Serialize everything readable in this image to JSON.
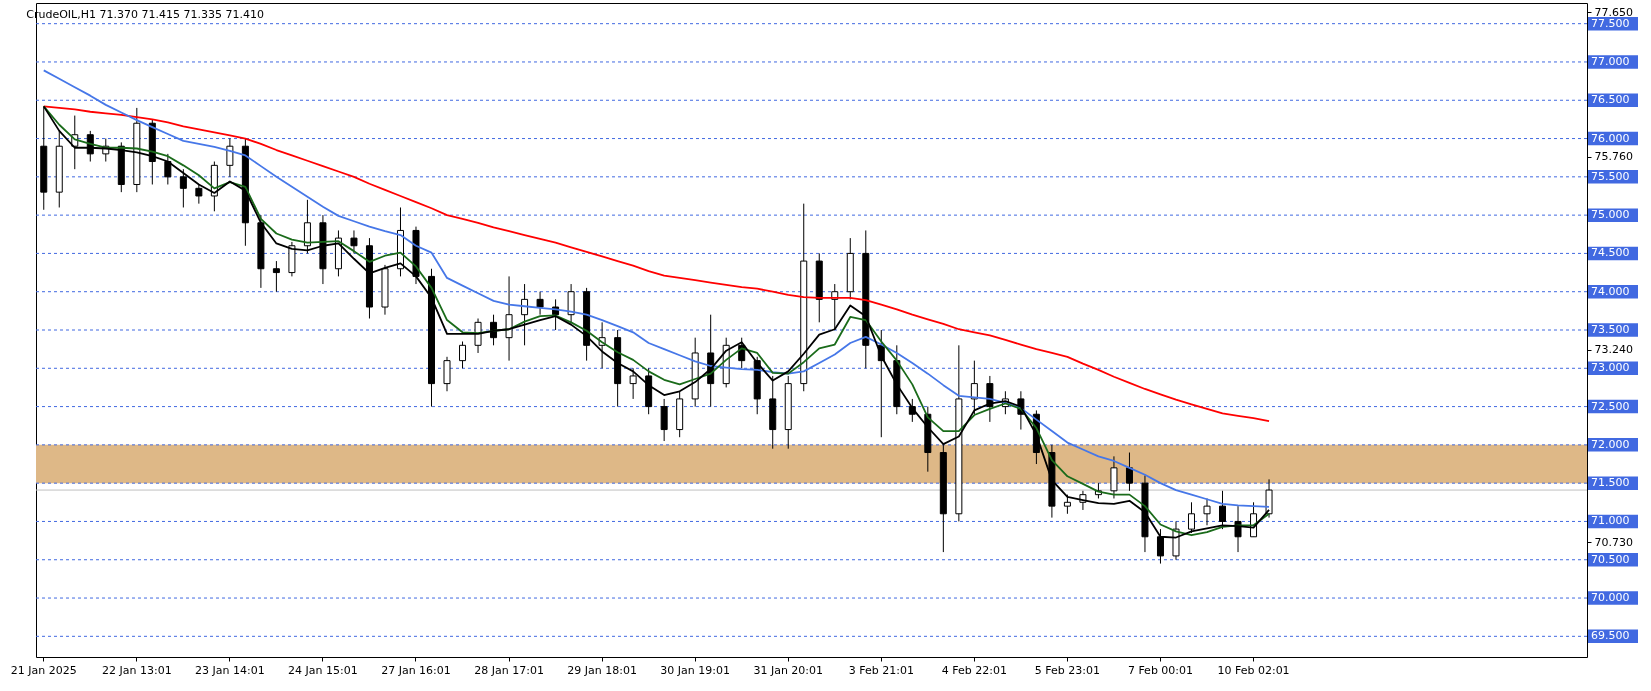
{
  "chart_data": {
    "type": "candlestick",
    "title": "CrudeOIL,H1  71.370 71.415 71.335 71.410",
    "categories": [
      "21 Jan 2025",
      null,
      null,
      null,
      null,
      null,
      "22 Jan 13:01",
      null,
      null,
      null,
      null,
      null,
      "23 Jan 14:01",
      null,
      null,
      null,
      null,
      null,
      "24 Jan 15:01",
      null,
      null,
      null,
      null,
      null,
      "27 Jan 16:01",
      null,
      null,
      null,
      null,
      null,
      "28 Jan 17:01",
      null,
      null,
      null,
      null,
      null,
      "29 Jan 18:01",
      null,
      null,
      null,
      null,
      null,
      "30 Jan 19:01",
      null,
      null,
      null,
      null,
      null,
      "31 Jan 20:01",
      null,
      null,
      null,
      null,
      null,
      "3 Feb 21:01",
      null,
      null,
      null,
      null,
      null,
      "4 Feb 22:01",
      null,
      null,
      null,
      null,
      null,
      "5 Feb 23:01",
      null,
      null,
      null,
      null,
      null,
      "7 Feb 00:01",
      null,
      null,
      null,
      null,
      null,
      "10 Feb 02:01",
      null,
      null,
      null,
      null,
      null,
      null,
      null,
      null,
      null,
      null,
      null,
      null,
      null,
      null,
      null,
      null,
      null,
      null,
      null,
      null,
      null
    ],
    "series": [
      {
        "type": "candlestick",
        "color": "#000000",
        "ohlc": [
          [
            75.9,
            76.42,
            75.07,
            75.3
          ],
          [
            75.3,
            76.1,
            75.1,
            75.9
          ],
          [
            75.9,
            76.3,
            75.6,
            76.05
          ],
          [
            76.05,
            76.1,
            75.7,
            75.8
          ],
          [
            75.8,
            76.0,
            75.7,
            75.9
          ],
          [
            75.9,
            75.95,
            75.3,
            75.4
          ],
          [
            75.4,
            76.4,
            75.3,
            76.2
          ],
          [
            76.2,
            76.25,
            75.4,
            75.7
          ],
          [
            75.7,
            75.8,
            75.4,
            75.5
          ],
          [
            75.5,
            75.6,
            75.1,
            75.35
          ],
          [
            75.35,
            75.4,
            75.15,
            75.25
          ],
          [
            75.25,
            75.7,
            75.05,
            75.65
          ],
          [
            75.65,
            76.0,
            75.5,
            75.9
          ],
          [
            75.9,
            76.0,
            74.6,
            74.9
          ],
          [
            74.9,
            75.0,
            74.05,
            74.3
          ],
          [
            74.3,
            74.4,
            74.0,
            74.25
          ],
          [
            74.25,
            74.65,
            74.2,
            74.6
          ],
          [
            74.6,
            75.2,
            74.5,
            74.9
          ],
          [
            74.9,
            75.0,
            74.1,
            74.3
          ],
          [
            74.3,
            74.8,
            74.2,
            74.7
          ],
          [
            74.7,
            74.8,
            74.5,
            74.6
          ],
          [
            74.6,
            74.7,
            73.65,
            73.8
          ],
          [
            73.8,
            74.35,
            73.7,
            74.3
          ],
          [
            74.3,
            75.1,
            74.2,
            74.8
          ],
          [
            74.8,
            74.85,
            74.1,
            74.2
          ],
          [
            74.2,
            74.3,
            72.5,
            72.8
          ],
          [
            72.8,
            73.15,
            72.7,
            73.1
          ],
          [
            73.1,
            73.35,
            73.0,
            73.3
          ],
          [
            73.3,
            73.65,
            73.2,
            73.6
          ],
          [
            73.6,
            73.7,
            73.3,
            73.4
          ],
          [
            73.4,
            74.2,
            73.1,
            73.7
          ],
          [
            73.7,
            74.1,
            73.3,
            73.9
          ],
          [
            73.9,
            74.0,
            73.7,
            73.8
          ],
          [
            73.8,
            73.9,
            73.5,
            73.7
          ],
          [
            73.7,
            74.1,
            73.6,
            74.0
          ],
          [
            74.0,
            74.05,
            73.1,
            73.3
          ],
          [
            73.3,
            73.6,
            73.0,
            73.4
          ],
          [
            73.4,
            73.5,
            72.5,
            72.8
          ],
          [
            72.8,
            73.0,
            72.6,
            72.9
          ],
          [
            72.9,
            73.0,
            72.4,
            72.5
          ],
          [
            72.5,
            72.6,
            72.05,
            72.2
          ],
          [
            72.2,
            72.7,
            72.1,
            72.6
          ],
          [
            72.6,
            73.4,
            72.5,
            73.2
          ],
          [
            73.2,
            73.7,
            72.5,
            72.8
          ],
          [
            72.8,
            73.4,
            72.75,
            73.3
          ],
          [
            73.3,
            73.4,
            73.0,
            73.1
          ],
          [
            73.1,
            73.15,
            72.4,
            72.6
          ],
          [
            72.6,
            72.9,
            71.95,
            72.2
          ],
          [
            72.2,
            72.9,
            71.95,
            72.8
          ],
          [
            72.8,
            75.15,
            72.7,
            74.4
          ],
          [
            74.4,
            74.5,
            73.6,
            73.9
          ],
          [
            73.9,
            74.1,
            73.5,
            74.0
          ],
          [
            74.0,
            74.7,
            73.9,
            74.5
          ],
          [
            74.5,
            74.8,
            73.0,
            73.3
          ],
          [
            73.3,
            73.5,
            72.1,
            73.1
          ],
          [
            73.1,
            73.3,
            72.4,
            72.5
          ],
          [
            72.5,
            72.6,
            72.3,
            72.4
          ],
          [
            72.4,
            72.5,
            71.65,
            71.9
          ],
          [
            71.9,
            72.0,
            70.6,
            71.1
          ],
          [
            71.1,
            73.3,
            71.0,
            72.6
          ],
          [
            72.6,
            73.1,
            72.4,
            72.8
          ],
          [
            72.8,
            72.9,
            72.3,
            72.5
          ],
          [
            72.5,
            72.7,
            72.4,
            72.6
          ],
          [
            72.6,
            72.7,
            72.2,
            72.4
          ],
          [
            72.4,
            72.45,
            71.75,
            71.9
          ],
          [
            71.9,
            72.0,
            71.05,
            71.2
          ],
          [
            71.2,
            71.35,
            71.1,
            71.25
          ],
          [
            71.25,
            71.4,
            71.15,
            71.35
          ],
          [
            71.35,
            71.5,
            71.3,
            71.4
          ],
          [
            71.4,
            71.85,
            71.3,
            71.7
          ],
          [
            71.7,
            71.9,
            71.4,
            71.5
          ],
          [
            71.5,
            71.6,
            70.6,
            70.8
          ],
          [
            70.8,
            70.9,
            70.45,
            70.55
          ],
          [
            70.55,
            71.0,
            70.5,
            70.9
          ],
          [
            70.9,
            71.25,
            70.85,
            71.1
          ],
          [
            71.1,
            71.3,
            70.95,
            71.2
          ],
          [
            71.2,
            71.4,
            70.9,
            71.0
          ],
          [
            71.0,
            71.2,
            70.6,
            70.8
          ],
          [
            70.8,
            71.25,
            70.8,
            71.1
          ],
          [
            71.1,
            71.55,
            71.05,
            71.41
          ],
          null,
          null,
          null,
          null,
          null,
          null,
          null,
          null,
          null,
          null,
          null,
          null,
          null,
          null,
          null,
          null,
          null,
          null,
          null,
          null
        ]
      },
      {
        "type": "line",
        "color": "#ff0000",
        "values": [
          76.42,
          76.4,
          76.38,
          76.35,
          76.33,
          76.31,
          76.28,
          76.25,
          76.21,
          76.16,
          76.12,
          76.08,
          76.04,
          76.0,
          75.93,
          75.85,
          75.78,
          75.71,
          75.64,
          75.57,
          75.5,
          75.41,
          75.33,
          75.25,
          75.17,
          75.09,
          75.0,
          74.95,
          74.9,
          74.84,
          74.79,
          74.74,
          74.69,
          74.64,
          74.58,
          74.52,
          74.46,
          74.4,
          74.34,
          74.27,
          74.21,
          74.18,
          74.15,
          74.12,
          74.09,
          74.06,
          74.04,
          74.0,
          73.96,
          73.93,
          73.92,
          73.92,
          73.92,
          73.89,
          73.83,
          73.77,
          73.7,
          73.64,
          73.58,
          73.51,
          73.47,
          73.43,
          73.37,
          73.31,
          73.25,
          73.2,
          73.15,
          73.06,
          72.98,
          72.89,
          72.81,
          72.73,
          72.66,
          72.59,
          72.53,
          72.47,
          72.41,
          72.38,
          72.35,
          72.31,
          null,
          null,
          null,
          null,
          null,
          null,
          null,
          null,
          null,
          null,
          null,
          null,
          null,
          null,
          null,
          null,
          null,
          null,
          null,
          null
        ]
      },
      {
        "type": "line",
        "color": "#4677e8",
        "values": [
          76.89,
          76.78,
          76.67,
          76.56,
          76.44,
          76.34,
          76.24,
          76.15,
          76.06,
          75.97,
          75.93,
          75.89,
          75.84,
          75.78,
          75.64,
          75.5,
          75.37,
          75.24,
          75.11,
          74.99,
          74.92,
          74.85,
          74.79,
          74.74,
          74.6,
          74.51,
          74.18,
          74.08,
          73.98,
          73.88,
          73.83,
          73.81,
          73.79,
          73.77,
          73.74,
          73.7,
          73.63,
          73.55,
          73.47,
          73.33,
          73.25,
          73.17,
          73.09,
          73.03,
          73.01,
          72.99,
          72.98,
          72.95,
          72.93,
          72.96,
          73.07,
          73.18,
          73.33,
          73.41,
          73.31,
          73.2,
          73.07,
          72.93,
          72.78,
          72.64,
          72.62,
          72.6,
          72.55,
          72.48,
          72.33,
          72.18,
          72.03,
          71.94,
          71.85,
          71.79,
          71.7,
          71.61,
          71.5,
          71.41,
          71.35,
          71.29,
          71.23,
          71.21,
          71.2,
          71.19,
          null,
          null,
          null,
          null,
          null,
          null,
          null,
          null,
          null,
          null,
          null,
          null,
          null,
          null,
          null,
          null,
          null,
          null,
          null,
          null
        ]
      },
      {
        "type": "line",
        "color": "#1a6b1a",
        "values": [
          76.42,
          76.18,
          75.99,
          75.93,
          75.88,
          75.88,
          75.87,
          75.83,
          75.77,
          75.65,
          75.52,
          75.35,
          75.43,
          75.37,
          74.95,
          74.76,
          74.68,
          74.64,
          74.65,
          74.66,
          74.53,
          74.39,
          74.47,
          74.51,
          74.33,
          74.05,
          73.63,
          73.47,
          73.46,
          73.49,
          73.51,
          73.61,
          73.68,
          73.69,
          73.6,
          73.49,
          73.34,
          73.21,
          73.11,
          72.96,
          72.85,
          72.79,
          72.86,
          72.93,
          73.11,
          73.26,
          73.2,
          72.94,
          72.93,
          73.08,
          73.26,
          73.31,
          73.67,
          73.63,
          73.35,
          73.1,
          72.79,
          72.36,
          72.18,
          72.18,
          72.39,
          72.47,
          72.54,
          72.47,
          72.22,
          71.8,
          71.59,
          71.49,
          71.39,
          71.35,
          71.35,
          71.2,
          70.96,
          70.87,
          70.82,
          70.86,
          70.93,
          70.95,
          70.95,
          71.1,
          null,
          null,
          null,
          null,
          null,
          null,
          null,
          null,
          null,
          null,
          null,
          null,
          null,
          null,
          null,
          null,
          null,
          null,
          null,
          null
        ]
      },
      {
        "type": "line",
        "color": "#000000",
        "values": [
          76.42,
          76.1,
          75.88,
          75.88,
          75.87,
          75.85,
          75.82,
          75.77,
          75.7,
          75.55,
          75.4,
          75.29,
          75.44,
          75.32,
          74.9,
          74.63,
          74.56,
          74.54,
          74.6,
          74.63,
          74.43,
          74.24,
          74.31,
          74.37,
          74.2,
          73.92,
          73.45,
          73.45,
          73.45,
          73.49,
          73.51,
          73.57,
          73.63,
          73.68,
          73.57,
          73.42,
          73.22,
          73.07,
          72.96,
          72.78,
          72.65,
          72.7,
          72.82,
          72.99,
          73.23,
          73.34,
          73.07,
          72.84,
          72.96,
          73.19,
          73.44,
          73.51,
          73.82,
          73.68,
          73.16,
          72.79,
          72.48,
          72.23,
          72.01,
          72.11,
          72.45,
          72.54,
          72.57,
          72.5,
          72.13,
          71.54,
          71.32,
          71.28,
          71.24,
          71.23,
          71.27,
          71.12,
          70.8,
          70.79,
          70.87,
          70.91,
          70.95,
          70.94,
          70.92,
          71.15,
          null,
          null,
          null,
          null,
          null,
          null,
          null,
          null,
          null,
          null,
          null,
          null,
          null,
          null,
          null,
          null,
          null,
          null,
          null,
          null
        ]
      }
    ],
    "ylim": [
      69.23,
      77.77
    ],
    "yticks": [
      {
        "value": 77.65,
        "label": "77.650"
      },
      {
        "value": 75.76,
        "label": "75.760"
      },
      {
        "value": 73.24,
        "label": "73.240"
      },
      {
        "value": 70.73,
        "label": "70.730"
      }
    ],
    "ref_lines": [
      {
        "axis": "y",
        "value": 77.5,
        "label": "77.500",
        "color": "#4169e1",
        "line_style": "dashed"
      },
      {
        "axis": "y",
        "value": 77.0,
        "label": "77.000",
        "color": "#4169e1",
        "line_style": "dashed"
      },
      {
        "axis": "y",
        "value": 76.5,
        "label": "76.500",
        "color": "#4169e1",
        "line_style": "dashed"
      },
      {
        "axis": "y",
        "value": 76.0,
        "label": "76.000",
        "color": "#4169e1",
        "line_style": "dashed"
      },
      {
        "axis": "y",
        "value": 75.5,
        "label": "75.500",
        "color": "#4169e1",
        "line_style": "dashed"
      },
      {
        "axis": "y",
        "value": 75.0,
        "label": "75.000",
        "color": "#4169e1",
        "line_style": "dashed"
      },
      {
        "axis": "y",
        "value": 74.5,
        "label": "74.500",
        "color": "#4169e1",
        "line_style": "dashed"
      },
      {
        "axis": "y",
        "value": 74.0,
        "label": "74.000",
        "color": "#4169e1",
        "line_style": "dashed"
      },
      {
        "axis": "y",
        "value": 73.5,
        "label": "73.500",
        "color": "#4169e1",
        "line_style": "dashed"
      },
      {
        "axis": "y",
        "value": 73.0,
        "label": "73.000",
        "color": "#4169e1",
        "line_style": "dashed"
      },
      {
        "axis": "y",
        "value": 72.5,
        "label": "72.500",
        "color": "#4169e1",
        "line_style": "dashed"
      },
      {
        "axis": "y",
        "value": 72.0,
        "label": "72.000",
        "color": "#4169e1",
        "line_style": "dashed"
      },
      {
        "axis": "y",
        "value": 71.5,
        "label": "71.500",
        "color": "#4169e1",
        "line_style": "dashed"
      },
      {
        "axis": "y",
        "value": 71.0,
        "label": "71.000",
        "color": "#4169e1",
        "line_style": "dashed"
      },
      {
        "axis": "y",
        "value": 70.5,
        "label": "70.500",
        "color": "#4169e1",
        "line_style": "dashed"
      },
      {
        "axis": "y",
        "value": 70.0,
        "label": "70.000",
        "color": "#4169e1",
        "line_style": "dashed"
      },
      {
        "axis": "y",
        "value": 69.5,
        "label": "69.500",
        "color": "#4169e1",
        "line_style": "dashed"
      },
      {
        "axis": "y",
        "value": 71.41,
        "color": "#c0c0c0",
        "line_style": "solid"
      }
    ],
    "bands": [
      {
        "axis": "y",
        "from": 71.5,
        "to": 72.0,
        "color": "#deb887"
      }
    ]
  }
}
